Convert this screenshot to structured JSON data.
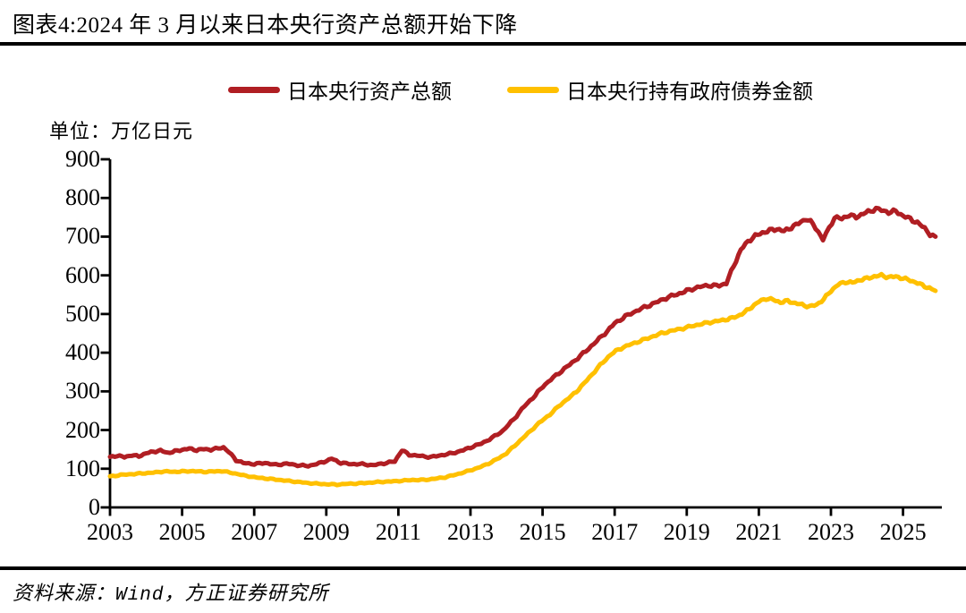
{
  "title": "图表4:2024 年 3 月以来日本央行资产总额开始下降",
  "unit_label": "单位：万亿日元",
  "source": {
    "prefix": "资料来源：",
    "vendor": "Wind",
    "separator": "，",
    "institution": "方正证券研究所"
  },
  "legend": [
    {
      "label": "日本央行资产总额",
      "color": "#B01E23"
    },
    {
      "label": "日本央行持有政府债券金额",
      "color": "#FFC000"
    }
  ],
  "colors": {
    "series1": "#B01E23",
    "series2": "#FFC000",
    "axis": "#000000"
  },
  "chart_data": {
    "type": "line",
    "title": "图表4:2024 年 3 月以来日本央行资产总额开始下降",
    "ylabel": "万亿日元",
    "xlabel": "",
    "grid": false,
    "legend_position": "top",
    "x_axis": {
      "ticks": [
        2003,
        2005,
        2007,
        2009,
        2011,
        2013,
        2015,
        2017,
        2019,
        2021,
        2023,
        2025
      ],
      "range": [
        2003,
        2026.1
      ]
    },
    "y_axis": {
      "ticks": [
        0,
        100,
        200,
        300,
        400,
        500,
        600,
        700,
        800,
        900
      ],
      "range": [
        0,
        900
      ]
    },
    "series": [
      {
        "name": "日本央行资产总额",
        "color": "#B01E23",
        "points": [
          [
            2003.0,
            130
          ],
          [
            2003.2,
            134
          ],
          [
            2003.4,
            130
          ],
          [
            2003.6,
            135
          ],
          [
            2003.8,
            132
          ],
          [
            2004.0,
            140
          ],
          [
            2004.2,
            144
          ],
          [
            2004.4,
            147
          ],
          [
            2004.6,
            141
          ],
          [
            2004.8,
            145
          ],
          [
            2005.0,
            149
          ],
          [
            2005.2,
            152
          ],
          [
            2005.4,
            148
          ],
          [
            2005.6,
            151
          ],
          [
            2005.8,
            149
          ],
          [
            2006.0,
            153
          ],
          [
            2006.15,
            155
          ],
          [
            2006.3,
            143
          ],
          [
            2006.5,
            122
          ],
          [
            2006.7,
            115
          ],
          [
            2007.0,
            112
          ],
          [
            2007.3,
            115
          ],
          [
            2007.6,
            110
          ],
          [
            2007.9,
            113
          ],
          [
            2008.2,
            109
          ],
          [
            2008.5,
            107
          ],
          [
            2008.8,
            114
          ],
          [
            2009.0,
            120
          ],
          [
            2009.15,
            126
          ],
          [
            2009.4,
            115
          ],
          [
            2009.7,
            112
          ],
          [
            2010.0,
            112
          ],
          [
            2010.3,
            109
          ],
          [
            2010.6,
            114
          ],
          [
            2010.9,
            119
          ],
          [
            2011.1,
            148
          ],
          [
            2011.3,
            136
          ],
          [
            2011.6,
            133
          ],
          [
            2011.9,
            130
          ],
          [
            2012.2,
            135
          ],
          [
            2012.5,
            140
          ],
          [
            2012.8,
            148
          ],
          [
            2013.0,
            155
          ],
          [
            2013.3,
            165
          ],
          [
            2013.6,
            180
          ],
          [
            2013.9,
            198
          ],
          [
            2014.2,
            228
          ],
          [
            2014.5,
            262
          ],
          [
            2014.8,
            290
          ],
          [
            2015.0,
            312
          ],
          [
            2015.3,
            336
          ],
          [
            2015.6,
            358
          ],
          [
            2015.9,
            380
          ],
          [
            2016.2,
            404
          ],
          [
            2016.5,
            430
          ],
          [
            2016.8,
            456
          ],
          [
            2017.0,
            476
          ],
          [
            2017.3,
            494
          ],
          [
            2017.6,
            508
          ],
          [
            2017.9,
            520
          ],
          [
            2018.2,
            532
          ],
          [
            2018.5,
            544
          ],
          [
            2018.8,
            553
          ],
          [
            2019.0,
            560
          ],
          [
            2019.3,
            569
          ],
          [
            2019.6,
            574
          ],
          [
            2019.9,
            573
          ],
          [
            2020.1,
            580
          ],
          [
            2020.3,
            624
          ],
          [
            2020.5,
            666
          ],
          [
            2020.7,
            688
          ],
          [
            2020.9,
            702
          ],
          [
            2021.1,
            710
          ],
          [
            2021.3,
            716
          ],
          [
            2021.5,
            720
          ],
          [
            2021.7,
            714
          ],
          [
            2021.9,
            724
          ],
          [
            2022.1,
            734
          ],
          [
            2022.3,
            746
          ],
          [
            2022.5,
            734
          ],
          [
            2022.65,
            712
          ],
          [
            2022.78,
            692
          ],
          [
            2022.95,
            722
          ],
          [
            2023.1,
            750
          ],
          [
            2023.3,
            746
          ],
          [
            2023.5,
            756
          ],
          [
            2023.7,
            750
          ],
          [
            2023.9,
            760
          ],
          [
            2024.1,
            766
          ],
          [
            2024.25,
            773
          ],
          [
            2024.4,
            768
          ],
          [
            2024.6,
            763
          ],
          [
            2024.8,
            766
          ],
          [
            2025.0,
            754
          ],
          [
            2025.2,
            746
          ],
          [
            2025.4,
            736
          ],
          [
            2025.6,
            722
          ],
          [
            2025.75,
            706
          ],
          [
            2025.9,
            700
          ]
        ]
      },
      {
        "name": "日本央行持有政府债券金额",
        "color": "#FFC000",
        "points": [
          [
            2003.0,
            80
          ],
          [
            2003.3,
            84
          ],
          [
            2003.6,
            86
          ],
          [
            2003.9,
            88
          ],
          [
            2004.2,
            90
          ],
          [
            2004.5,
            93
          ],
          [
            2004.8,
            92
          ],
          [
            2005.0,
            93
          ],
          [
            2005.3,
            94
          ],
          [
            2005.6,
            92
          ],
          [
            2005.9,
            93
          ],
          [
            2006.1,
            94
          ],
          [
            2006.4,
            89
          ],
          [
            2006.7,
            83
          ],
          [
            2007.0,
            78
          ],
          [
            2007.3,
            75
          ],
          [
            2007.6,
            72
          ],
          [
            2007.9,
            69
          ],
          [
            2008.2,
            66
          ],
          [
            2008.5,
            63
          ],
          [
            2008.8,
            61
          ],
          [
            2009.0,
            60
          ],
          [
            2009.3,
            59
          ],
          [
            2009.6,
            61
          ],
          [
            2009.9,
            62
          ],
          [
            2010.2,
            64
          ],
          [
            2010.5,
            66
          ],
          [
            2010.8,
            67
          ],
          [
            2011.1,
            69
          ],
          [
            2011.4,
            71
          ],
          [
            2011.7,
            71
          ],
          [
            2012.0,
            74
          ],
          [
            2012.3,
            78
          ],
          [
            2012.6,
            85
          ],
          [
            2012.9,
            93
          ],
          [
            2013.2,
            102
          ],
          [
            2013.5,
            113
          ],
          [
            2013.8,
            128
          ],
          [
            2014.0,
            140
          ],
          [
            2014.3,
            166
          ],
          [
            2014.6,
            192
          ],
          [
            2014.9,
            218
          ],
          [
            2015.2,
            240
          ],
          [
            2015.5,
            266
          ],
          [
            2015.8,
            288
          ],
          [
            2016.0,
            305
          ],
          [
            2016.3,
            336
          ],
          [
            2016.6,
            368
          ],
          [
            2016.9,
            396
          ],
          [
            2017.1,
            408
          ],
          [
            2017.4,
            420
          ],
          [
            2017.7,
            430
          ],
          [
            2018.0,
            440
          ],
          [
            2018.3,
            450
          ],
          [
            2018.6,
            457
          ],
          [
            2018.9,
            463
          ],
          [
            2019.2,
            470
          ],
          [
            2019.5,
            476
          ],
          [
            2019.8,
            481
          ],
          [
            2020.0,
            484
          ],
          [
            2020.2,
            488
          ],
          [
            2020.4,
            494
          ],
          [
            2020.6,
            504
          ],
          [
            2020.8,
            518
          ],
          [
            2021.0,
            532
          ],
          [
            2021.2,
            540
          ],
          [
            2021.4,
            537
          ],
          [
            2021.6,
            530
          ],
          [
            2021.8,
            534
          ],
          [
            2022.0,
            528
          ],
          [
            2022.2,
            524
          ],
          [
            2022.4,
            519
          ],
          [
            2022.6,
            524
          ],
          [
            2022.8,
            538
          ],
          [
            2023.0,
            560
          ],
          [
            2023.2,
            576
          ],
          [
            2023.4,
            583
          ],
          [
            2023.6,
            581
          ],
          [
            2023.8,
            588
          ],
          [
            2024.0,
            592
          ],
          [
            2024.2,
            597
          ],
          [
            2024.4,
            600
          ],
          [
            2024.6,
            595
          ],
          [
            2024.8,
            597
          ],
          [
            2025.0,
            592
          ],
          [
            2025.2,
            587
          ],
          [
            2025.4,
            580
          ],
          [
            2025.6,
            572
          ],
          [
            2025.8,
            564
          ],
          [
            2025.9,
            560
          ]
        ]
      }
    ]
  }
}
